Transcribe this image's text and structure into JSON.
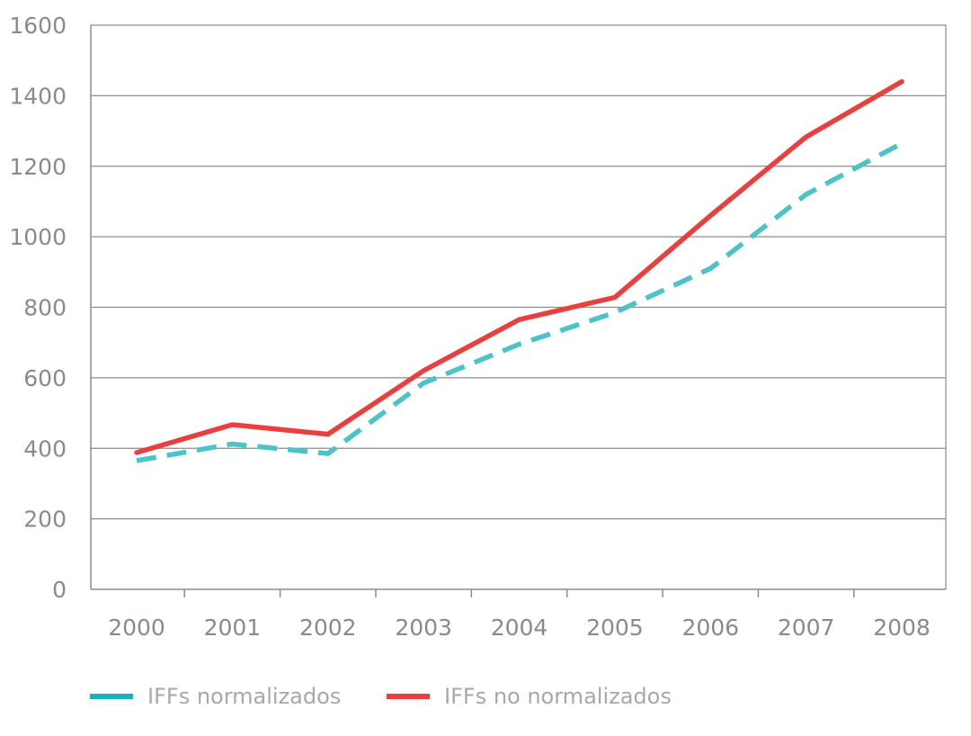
{
  "colors": {
    "background": "#ffffff",
    "grid": "#8c8c8c",
    "axis": "#8c8c8c",
    "tick_text": "#8a8a8a",
    "legend_text": "#a8a8a8",
    "series_normalized": "#4cc3c7",
    "series_not_normalized": "#e8403f",
    "legend_normalized_swatch": "#16b3bd"
  },
  "chart_data": {
    "type": "line",
    "title": "",
    "xlabel": "",
    "ylabel": "",
    "categories": [
      "2000",
      "2001",
      "2002",
      "2003",
      "2004",
      "2005",
      "2006",
      "2007",
      "2008"
    ],
    "ylim": [
      0,
      1600
    ],
    "yticks": [
      0,
      200,
      400,
      600,
      800,
      1000,
      1200,
      1400,
      1600
    ],
    "grid": true,
    "legend_position": "bottom-left",
    "series": [
      {
        "name": "IFFs normalizados",
        "style": "dashed",
        "color": "#4cc3c7",
        "values": [
          365,
          412,
          385,
          585,
          695,
          785,
          910,
          1120,
          1265
        ]
      },
      {
        "name": "IFFs no normalizados",
        "style": "solid",
        "color": "#e8403f",
        "values": [
          388,
          467,
          440,
          620,
          765,
          828,
          1060,
          1283,
          1440
        ]
      }
    ]
  }
}
